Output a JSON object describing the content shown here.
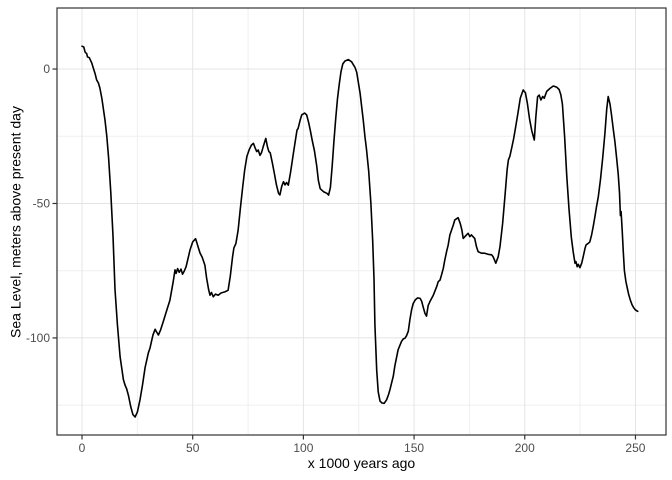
{
  "figure": {
    "x_axis_title": "x 1000 years ago",
    "y_axis_title": "Sea Level, meters above present day"
  },
  "style": {
    "background": "#ffffff",
    "panel_background": "#ffffff",
    "panel_border_color": "#333333",
    "grid_major_color": "#e4e4e4",
    "grid_minor_color": "#efefef",
    "tick_color": "#333333",
    "tick_label_color": "#4d4d4d",
    "line_color": "#000000"
  },
  "chart_data": {
    "type": "line",
    "title": "",
    "xlabel": "x 1000 years ago",
    "ylabel": "Sea Level, meters above present day",
    "grid": true,
    "legend": "none",
    "xlim": [
      -11.3,
      263.8
    ],
    "ylim": [
      -136.1,
      22.7
    ],
    "x_ticks": [
      0,
      50,
      100,
      150,
      200,
      250
    ],
    "y_ticks": [
      0,
      -50,
      -100
    ],
    "x_minor_ticks": [
      25,
      75,
      125,
      175,
      225
    ],
    "y_minor_ticks": [
      -25,
      -75,
      -125
    ],
    "series": [
      {
        "name": "sea-level",
        "points": [
          [
            0,
            8.5
          ],
          [
            0.8,
            8.2
          ],
          [
            1.4,
            6.3
          ],
          [
            2.1,
            5.7
          ],
          [
            2.5,
            4.5
          ],
          [
            3.3,
            4.2
          ],
          [
            4.4,
            2.2
          ],
          [
            5.1,
            0.4
          ],
          [
            6,
            -2
          ],
          [
            6.6,
            -4
          ],
          [
            7.4,
            -5.2
          ],
          [
            8.1,
            -7.1
          ],
          [
            9,
            -11
          ],
          [
            10.4,
            -19
          ],
          [
            11.2,
            -25
          ],
          [
            12,
            -33
          ],
          [
            13,
            -46
          ],
          [
            14,
            -62
          ],
          [
            14.9,
            -82
          ],
          [
            16,
            -95
          ],
          [
            17.2,
            -107
          ],
          [
            18.7,
            -115.5
          ],
          [
            19.4,
            -117.5
          ],
          [
            20.2,
            -119
          ],
          [
            21,
            -121.5
          ],
          [
            22,
            -125.5
          ],
          [
            23,
            -128.5
          ],
          [
            24,
            -129.4
          ],
          [
            25,
            -127.5
          ],
          [
            26.2,
            -123
          ],
          [
            27.3,
            -117.5
          ],
          [
            28.5,
            -111
          ],
          [
            30,
            -105.5
          ],
          [
            30.7,
            -103.8
          ],
          [
            32,
            -99
          ],
          [
            33,
            -96.8
          ],
          [
            33.7,
            -97.8
          ],
          [
            34.5,
            -98.9
          ],
          [
            35.5,
            -97
          ],
          [
            36.7,
            -93.9
          ],
          [
            38,
            -90.5
          ],
          [
            39.7,
            -86
          ],
          [
            41.2,
            -79.1
          ],
          [
            42,
            -74.7
          ],
          [
            42.5,
            -76
          ],
          [
            43.2,
            -74.2
          ],
          [
            43.9,
            -75.6
          ],
          [
            44.7,
            -74.4
          ],
          [
            45.4,
            -76.3
          ],
          [
            46.2,
            -75.1
          ],
          [
            47,
            -73.5
          ],
          [
            48,
            -70
          ],
          [
            48.8,
            -67.3
          ],
          [
            50,
            -64.3
          ],
          [
            51.3,
            -63.1
          ],
          [
            52.4,
            -66
          ],
          [
            53.3,
            -68.4
          ],
          [
            54.3,
            -70
          ],
          [
            55.5,
            -73
          ],
          [
            56.3,
            -77.7
          ],
          [
            57.2,
            -82
          ],
          [
            57.8,
            -84.1
          ],
          [
            58.5,
            -83.1
          ],
          [
            59.3,
            -84.7
          ],
          [
            60.3,
            -83.7
          ],
          [
            61.5,
            -84.1
          ],
          [
            62.8,
            -83.3
          ],
          [
            64.5,
            -82.9
          ],
          [
            66,
            -82.3
          ],
          [
            67,
            -77
          ],
          [
            68,
            -70
          ],
          [
            68.6,
            -66.5
          ],
          [
            69.5,
            -64.9
          ],
          [
            70.5,
            -60
          ],
          [
            71.5,
            -52
          ],
          [
            72.5,
            -44.5
          ],
          [
            73.5,
            -37.5
          ],
          [
            74.5,
            -32.5
          ],
          [
            75.5,
            -30
          ],
          [
            76.5,
            -28.3
          ],
          [
            77.4,
            -27.6
          ],
          [
            78.3,
            -29.6
          ],
          [
            78.9,
            -30.7
          ],
          [
            79.6,
            -30.1
          ],
          [
            80.4,
            -32.1
          ],
          [
            81.1,
            -31.1
          ],
          [
            82,
            -28.5
          ],
          [
            83,
            -25.8
          ],
          [
            83.8,
            -29
          ],
          [
            84.4,
            -30.7
          ],
          [
            85,
            -31.1
          ],
          [
            86,
            -35
          ],
          [
            86.8,
            -38.5
          ],
          [
            87.8,
            -43
          ],
          [
            88.8,
            -46.3
          ],
          [
            89.4,
            -46.8
          ],
          [
            90.2,
            -43.7
          ],
          [
            91,
            -41.9
          ],
          [
            91.7,
            -43.1
          ],
          [
            92.4,
            -42.2
          ],
          [
            93.2,
            -43.2
          ],
          [
            94.2,
            -38.5
          ],
          [
            94.8,
            -35.1
          ],
          [
            95.5,
            -31.3
          ],
          [
            96.3,
            -27
          ],
          [
            97.1,
            -22.7
          ],
          [
            97.6,
            -22.1
          ],
          [
            98.6,
            -18.8
          ],
          [
            99.3,
            -17
          ],
          [
            100.6,
            -16.4
          ],
          [
            101.5,
            -17.1
          ],
          [
            102.4,
            -20
          ],
          [
            103.1,
            -22.8
          ],
          [
            104,
            -26.5
          ],
          [
            105,
            -30.5
          ],
          [
            106,
            -36
          ],
          [
            106.8,
            -41.5
          ],
          [
            107.6,
            -44.5
          ],
          [
            108.4,
            -45.1
          ],
          [
            109.2,
            -45.7
          ],
          [
            110.6,
            -46.2
          ],
          [
            111.4,
            -46.9
          ],
          [
            112.2,
            -44
          ],
          [
            113,
            -36
          ],
          [
            113.8,
            -27
          ],
          [
            114.6,
            -18.5
          ],
          [
            115.4,
            -11
          ],
          [
            116.2,
            -5.5
          ],
          [
            117,
            -1
          ],
          [
            117.8,
            1.9
          ],
          [
            118.8,
            3
          ],
          [
            120.3,
            3.5
          ],
          [
            121.8,
            2.7
          ],
          [
            123.3,
            0.6
          ],
          [
            124.1,
            -1.2
          ],
          [
            125.6,
            -9
          ],
          [
            126.3,
            -13.8
          ],
          [
            127,
            -18.8
          ],
          [
            127.8,
            -25
          ],
          [
            128.5,
            -29.9
          ],
          [
            129.5,
            -38
          ],
          [
            130.5,
            -50
          ],
          [
            131.3,
            -64
          ],
          [
            131.9,
            -78
          ],
          [
            132.3,
            -95
          ],
          [
            133.1,
            -112
          ],
          [
            133.8,
            -120
          ],
          [
            134.6,
            -123.5
          ],
          [
            135.5,
            -124.2
          ],
          [
            136.5,
            -124.3
          ],
          [
            137.6,
            -123
          ],
          [
            138.5,
            -121
          ],
          [
            139.1,
            -119.3
          ],
          [
            140.6,
            -114.2
          ],
          [
            141.3,
            -110.5
          ],
          [
            142.8,
            -104.4
          ],
          [
            144.3,
            -101.3
          ],
          [
            145.1,
            -100.4
          ],
          [
            145.9,
            -100.1
          ],
          [
            146.6,
            -99.2
          ],
          [
            147.4,
            -97.5
          ],
          [
            148.1,
            -93.2
          ],
          [
            148.9,
            -89.5
          ],
          [
            149.6,
            -87.2
          ],
          [
            150.6,
            -85.8
          ],
          [
            151.6,
            -85.1
          ],
          [
            152.7,
            -85.3
          ],
          [
            153.4,
            -86.3
          ],
          [
            154.2,
            -88.8
          ],
          [
            154.9,
            -90.8
          ],
          [
            155.6,
            -91.9
          ],
          [
            156.4,
            -87.9
          ],
          [
            157.2,
            -86.4
          ],
          [
            158.7,
            -84.1
          ],
          [
            160.2,
            -80.9
          ],
          [
            160.9,
            -79.1
          ],
          [
            161.7,
            -78.5
          ],
          [
            162.4,
            -76.6
          ],
          [
            163.2,
            -74.1
          ],
          [
            163.9,
            -71
          ],
          [
            164.7,
            -67.9
          ],
          [
            165.4,
            -65.4
          ],
          [
            166.2,
            -61.7
          ],
          [
            167.7,
            -58
          ],
          [
            168.4,
            -56.1
          ],
          [
            169.9,
            -55.3
          ],
          [
            170.9,
            -57.5
          ],
          [
            171.6,
            -59.9
          ],
          [
            172.2,
            -63
          ],
          [
            173.7,
            -61.7
          ],
          [
            174.4,
            -61.1
          ],
          [
            175.2,
            -62.3
          ],
          [
            175.9,
            -61.7
          ],
          [
            177.4,
            -63
          ],
          [
            178.2,
            -66.1
          ],
          [
            178.9,
            -67.9
          ],
          [
            180.4,
            -68.5
          ],
          [
            181.9,
            -68.5
          ],
          [
            183.4,
            -68.9
          ],
          [
            185,
            -69.1
          ],
          [
            185.7,
            -69.8
          ],
          [
            186.9,
            -72.2
          ],
          [
            188,
            -69.8
          ],
          [
            188.8,
            -66
          ],
          [
            190,
            -57.5
          ],
          [
            191,
            -48
          ],
          [
            192,
            -37.5
          ],
          [
            192.6,
            -33.8
          ],
          [
            193.3,
            -32.4
          ],
          [
            194.2,
            -29
          ],
          [
            195,
            -25.8
          ],
          [
            196,
            -21
          ],
          [
            197,
            -16
          ],
          [
            198,
            -10.8
          ],
          [
            199.3,
            -7.8
          ],
          [
            200.3,
            -8.8
          ],
          [
            201.2,
            -12.8
          ],
          [
            202.2,
            -18.7
          ],
          [
            203.2,
            -23
          ],
          [
            204.3,
            -26.4
          ],
          [
            205,
            -18
          ],
          [
            205.8,
            -10.3
          ],
          [
            206.5,
            -9.7
          ],
          [
            207.3,
            -11.5
          ],
          [
            208.1,
            -10.2
          ],
          [
            208.8,
            -10.9
          ],
          [
            209.9,
            -8.3
          ],
          [
            211.4,
            -7.2
          ],
          [
            212.9,
            -6.3
          ],
          [
            214.4,
            -6.7
          ],
          [
            215.5,
            -7.6
          ],
          [
            216.3,
            -9.5
          ],
          [
            217,
            -13
          ],
          [
            218,
            -25
          ],
          [
            219,
            -40
          ],
          [
            220,
            -52
          ],
          [
            221,
            -62.5
          ],
          [
            221.9,
            -68
          ],
          [
            222.7,
            -72.2
          ],
          [
            223.1,
            -71.6
          ],
          [
            223.7,
            -73.5
          ],
          [
            224.2,
            -72.6
          ],
          [
            224.9,
            -73.9
          ],
          [
            225.7,
            -72.2
          ],
          [
            226.4,
            -69.8
          ],
          [
            227.2,
            -66.7
          ],
          [
            227.7,
            -65.4
          ],
          [
            228.7,
            -64.8
          ],
          [
            229.4,
            -64.3
          ],
          [
            230.2,
            -61.7
          ],
          [
            230.9,
            -58.6
          ],
          [
            231.7,
            -54.9
          ],
          [
            232.4,
            -51.2
          ],
          [
            233.2,
            -47.5
          ],
          [
            234.2,
            -41
          ],
          [
            235.2,
            -33
          ],
          [
            236.2,
            -24
          ],
          [
            237,
            -15
          ],
          [
            237.7,
            -10.2
          ],
          [
            238.5,
            -13
          ],
          [
            239.2,
            -17
          ],
          [
            240,
            -22.5
          ],
          [
            240.7,
            -27
          ],
          [
            241.5,
            -33
          ],
          [
            242.2,
            -39
          ],
          [
            242.8,
            -46
          ],
          [
            243.2,
            -54.5
          ],
          [
            243.5,
            -53
          ],
          [
            244,
            -60
          ],
          [
            244.5,
            -68
          ],
          [
            245,
            -75
          ],
          [
            245.7,
            -79
          ],
          [
            246.3,
            -81.5
          ],
          [
            247,
            -84
          ],
          [
            247.7,
            -86
          ],
          [
            248.5,
            -87.7
          ],
          [
            249.2,
            -88.8
          ],
          [
            250,
            -89.6
          ],
          [
            251,
            -90.1
          ]
        ]
      }
    ]
  }
}
